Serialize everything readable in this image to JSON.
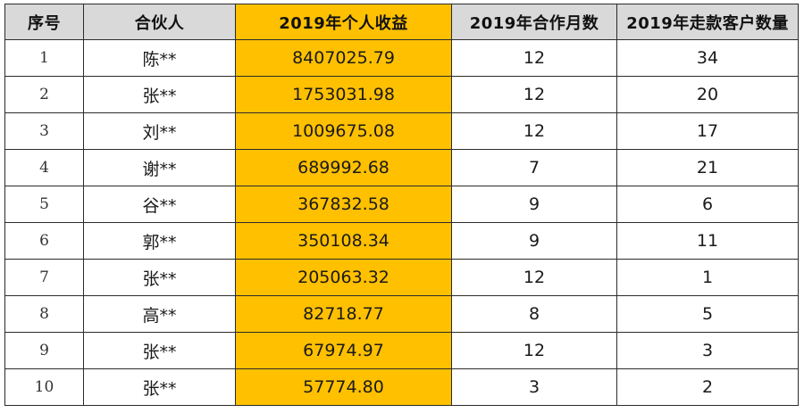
{
  "table": {
    "headers": [
      "序号",
      "合伙人",
      "2019年个人收益",
      "2019年合作月数",
      "2019年走款客户数量"
    ],
    "rows": [
      {
        "seq": "1",
        "partner": "陈**",
        "income": "8407025.79",
        "months": "12",
        "clients": "34"
      },
      {
        "seq": "2",
        "partner": "张**",
        "income": "1753031.98",
        "months": "12",
        "clients": "20"
      },
      {
        "seq": "3",
        "partner": "刘**",
        "income": "1009675.08",
        "months": "12",
        "clients": "17"
      },
      {
        "seq": "4",
        "partner": "谢**",
        "income": "689992.68",
        "months": "7",
        "clients": "21"
      },
      {
        "seq": "5",
        "partner": "谷**",
        "income": "367832.58",
        "months": "9",
        "clients": "6"
      },
      {
        "seq": "6",
        "partner": "郭**",
        "income": "350108.34",
        "months": "9",
        "clients": "11"
      },
      {
        "seq": "7",
        "partner": "张**",
        "income": "205063.32",
        "months": "12",
        "clients": "1"
      },
      {
        "seq": "8",
        "partner": "高**",
        "income": "82718.77",
        "months": "8",
        "clients": "5"
      },
      {
        "seq": "9",
        "partner": "张**",
        "income": "67974.97",
        "months": "12",
        "clients": "3"
      },
      {
        "seq": "10",
        "partner": "张**",
        "income": "57774.80",
        "months": "3",
        "clients": "2"
      }
    ]
  },
  "colors": {
    "header_bg": "#d9d9d9",
    "income_highlight": "#ffc000",
    "border": "#2b2b2b"
  }
}
